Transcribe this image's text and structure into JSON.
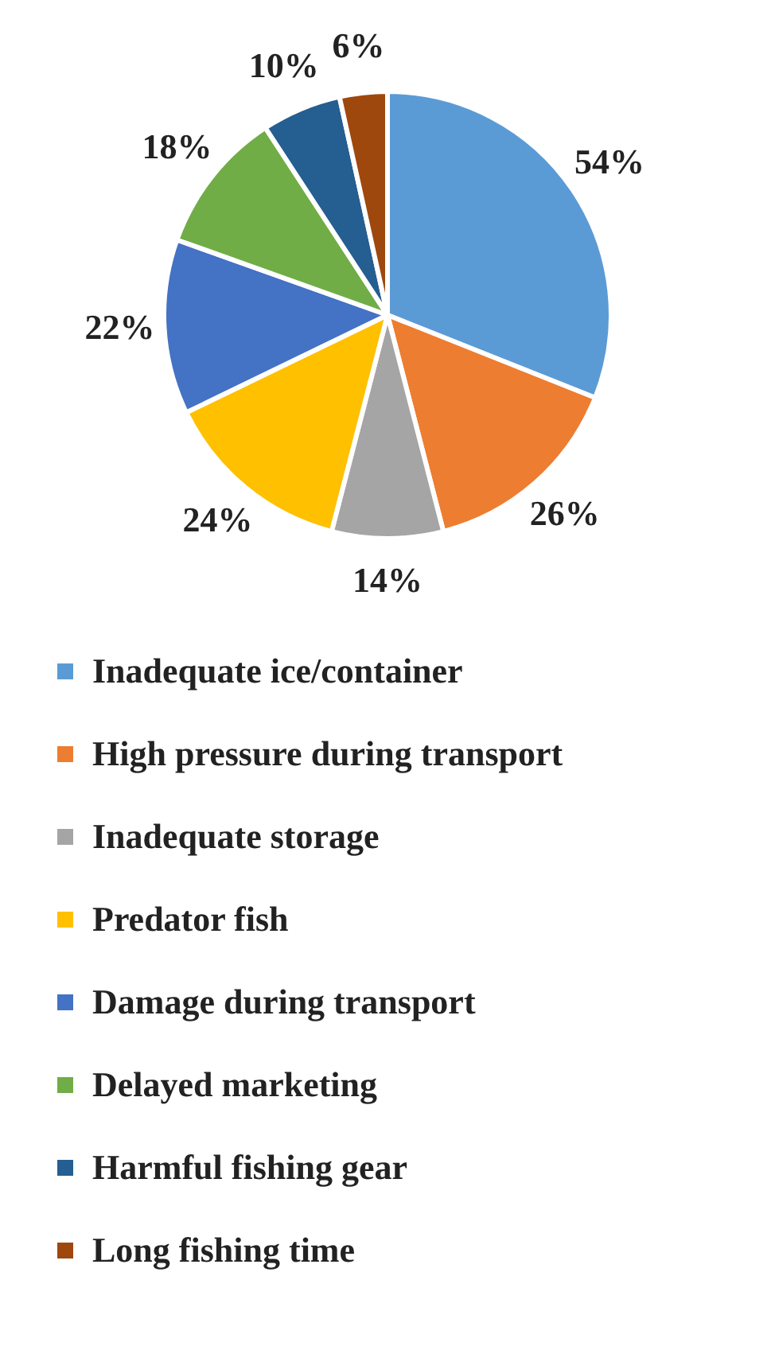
{
  "chart_data": {
    "type": "pie",
    "categories": [
      "Inadequate ice/container",
      "High pressure during transport",
      "Inadequate storage",
      "Predator fish",
      "Damage during transport",
      "Delayed marketing",
      "Harmful fishing gear",
      "Long fishing time"
    ],
    "values": [
      54,
      26,
      14,
      24,
      22,
      18,
      10,
      6
    ],
    "value_labels": [
      "54%",
      "26%",
      "14%",
      "24%",
      "22%",
      "18%",
      "10%",
      "6%"
    ],
    "colors": [
      "#5b9bd5",
      "#ed7d31",
      "#a5a5a5",
      "#ffc000",
      "#4472c4",
      "#70ad47",
      "#255e91",
      "#9e480e"
    ],
    "legend": "bottom"
  }
}
